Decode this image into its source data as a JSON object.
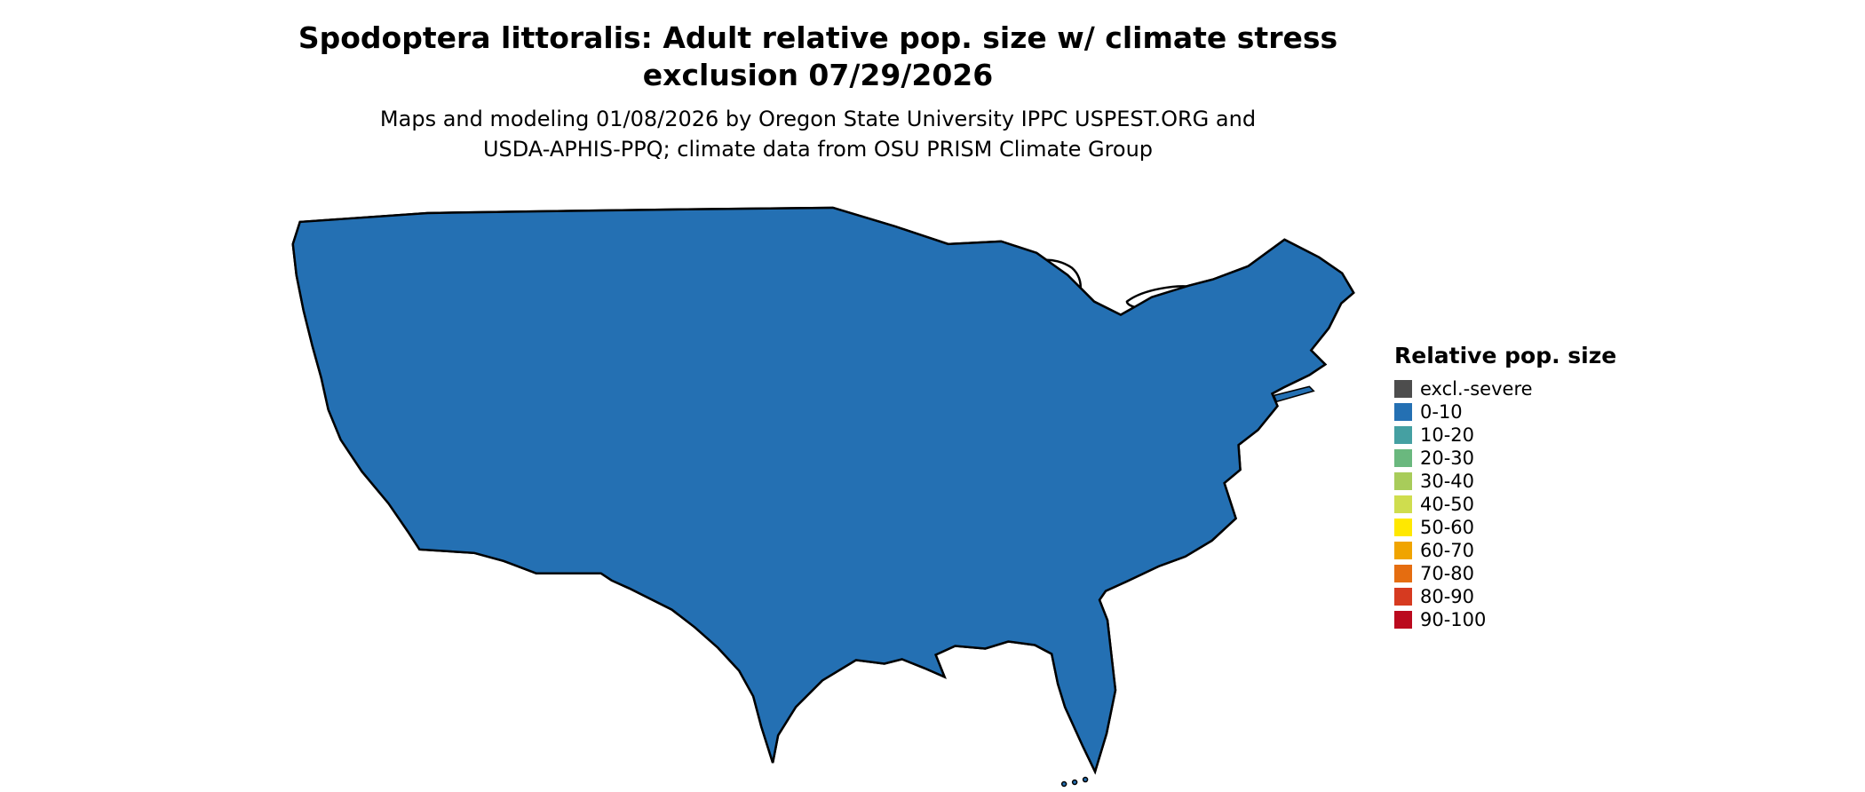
{
  "title": {
    "line1": "Spodoptera littoralis: Adult relative pop. size w/ climate stress",
    "line2": "exclusion 07/29/2026"
  },
  "subtitle": {
    "line1": "Maps and modeling 01/08/2026 by Oregon State University IPPC USPEST.ORG and",
    "line2": "USDA-APHIS-PPQ; climate data from OSU PRISM Climate Group"
  },
  "legend": {
    "title": "Relative pop. size",
    "items": [
      {
        "label": "excl.-severe",
        "color": "#4d4d4d"
      },
      {
        "label": "0-10",
        "color": "#2470b3"
      },
      {
        "label": "10-20",
        "color": "#45a0a2"
      },
      {
        "label": "20-30",
        "color": "#6ab87e"
      },
      {
        "label": "30-40",
        "color": "#a8cc5a"
      },
      {
        "label": "40-50",
        "color": "#cfdd4e"
      },
      {
        "label": "50-60",
        "color": "#ffe800"
      },
      {
        "label": "60-70",
        "color": "#f0a400"
      },
      {
        "label": "70-80",
        "color": "#e56d10"
      },
      {
        "label": "80-90",
        "color": "#d63a20"
      },
      {
        "label": "90-100",
        "color": "#bb0a1e"
      }
    ]
  },
  "map": {
    "colors": {
      "base_fill": "#2470b3",
      "exclusion_fill": "#4d4d4d",
      "speckle_teal": "#45a0a2",
      "speckle_green": "#a8cc5a",
      "water": "#ffffff",
      "border": "#000000"
    }
  }
}
